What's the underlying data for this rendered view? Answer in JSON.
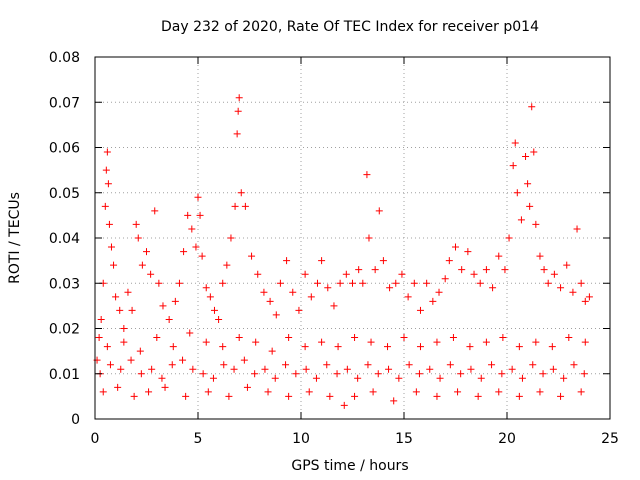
{
  "chart_data": {
    "type": "scatter",
    "title": "Day 232 of 2020, Rate Of TEC Index for receiver p014",
    "xlabel": "GPS time / hours",
    "ylabel": "ROTI / TECUs",
    "xlim": [
      0,
      25
    ],
    "ylim": [
      0,
      0.08
    ],
    "x_ticks": [
      0,
      5,
      10,
      15,
      20,
      25
    ],
    "y_ticks": [
      0,
      0.01,
      0.02,
      0.03,
      0.04,
      0.05,
      0.06,
      0.07,
      0.08
    ],
    "x_tick_labels": [
      "0",
      "5",
      "10",
      "15",
      "20",
      "25"
    ],
    "y_tick_labels": [
      "0",
      "0.01",
      "0.02",
      "0.03",
      "0.04",
      "0.05",
      "0.06",
      "0.07",
      "0.08"
    ],
    "grid": true,
    "marker": "plus",
    "series_color": "#ff0000",
    "series": [
      {
        "points": [
          [
            0.1,
            0.013
          ],
          [
            0.2,
            0.018
          ],
          [
            0.3,
            0.022
          ],
          [
            0.4,
            0.03
          ],
          [
            0.5,
            0.047
          ],
          [
            0.55,
            0.055
          ],
          [
            0.6,
            0.059
          ],
          [
            0.65,
            0.052
          ],
          [
            0.7,
            0.043
          ],
          [
            0.8,
            0.038
          ],
          [
            0.9,
            0.034
          ],
          [
            1.0,
            0.027
          ],
          [
            1.2,
            0.024
          ],
          [
            1.4,
            0.02
          ],
          [
            1.6,
            0.028
          ],
          [
            1.8,
            0.024
          ],
          [
            2.0,
            0.043
          ],
          [
            2.1,
            0.04
          ],
          [
            2.3,
            0.034
          ],
          [
            2.5,
            0.037
          ],
          [
            2.7,
            0.032
          ],
          [
            2.9,
            0.046
          ],
          [
            3.1,
            0.03
          ],
          [
            3.3,
            0.025
          ],
          [
            3.6,
            0.022
          ],
          [
            3.9,
            0.026
          ],
          [
            4.1,
            0.03
          ],
          [
            4.3,
            0.037
          ],
          [
            4.5,
            0.045
          ],
          [
            4.7,
            0.042
          ],
          [
            4.9,
            0.038
          ],
          [
            5.0,
            0.049
          ],
          [
            5.1,
            0.045
          ],
          [
            5.2,
            0.036
          ],
          [
            5.4,
            0.029
          ],
          [
            5.6,
            0.027
          ],
          [
            5.8,
            0.024
          ],
          [
            6.0,
            0.022
          ],
          [
            6.2,
            0.03
          ],
          [
            6.4,
            0.034
          ],
          [
            6.6,
            0.04
          ],
          [
            6.8,
            0.047
          ],
          [
            6.9,
            0.063
          ],
          [
            6.95,
            0.068
          ],
          [
            7.0,
            0.071
          ],
          [
            7.1,
            0.05
          ],
          [
            7.3,
            0.047
          ],
          [
            7.6,
            0.036
          ],
          [
            7.9,
            0.032
          ],
          [
            8.2,
            0.028
          ],
          [
            8.5,
            0.026
          ],
          [
            8.8,
            0.023
          ],
          [
            9.0,
            0.03
          ],
          [
            9.3,
            0.035
          ],
          [
            9.6,
            0.028
          ],
          [
            9.9,
            0.024
          ],
          [
            10.2,
            0.032
          ],
          [
            10.5,
            0.027
          ],
          [
            10.8,
            0.03
          ],
          [
            11.0,
            0.035
          ],
          [
            11.3,
            0.029
          ],
          [
            11.6,
            0.025
          ],
          [
            11.9,
            0.03
          ],
          [
            12.2,
            0.032
          ],
          [
            12.5,
            0.03
          ],
          [
            12.8,
            0.033
          ],
          [
            13.0,
            0.03
          ],
          [
            13.2,
            0.054
          ],
          [
            13.3,
            0.04
          ],
          [
            13.6,
            0.033
          ],
          [
            13.8,
            0.046
          ],
          [
            14.0,
            0.035
          ],
          [
            14.3,
            0.029
          ],
          [
            14.6,
            0.03
          ],
          [
            14.9,
            0.032
          ],
          [
            15.2,
            0.027
          ],
          [
            15.5,
            0.03
          ],
          [
            15.8,
            0.024
          ],
          [
            16.1,
            0.03
          ],
          [
            16.4,
            0.026
          ],
          [
            16.7,
            0.028
          ],
          [
            17.0,
            0.031
          ],
          [
            17.2,
            0.035
          ],
          [
            17.5,
            0.038
          ],
          [
            17.8,
            0.033
          ],
          [
            18.1,
            0.037
          ],
          [
            18.4,
            0.032
          ],
          [
            18.7,
            0.03
          ],
          [
            19.0,
            0.033
          ],
          [
            19.3,
            0.029
          ],
          [
            19.6,
            0.036
          ],
          [
            19.9,
            0.033
          ],
          [
            20.1,
            0.04
          ],
          [
            20.3,
            0.056
          ],
          [
            20.4,
            0.061
          ],
          [
            20.5,
            0.05
          ],
          [
            20.7,
            0.044
          ],
          [
            20.9,
            0.058
          ],
          [
            21.0,
            0.052
          ],
          [
            21.1,
            0.047
          ],
          [
            21.2,
            0.069
          ],
          [
            21.3,
            0.059
          ],
          [
            21.4,
            0.043
          ],
          [
            21.6,
            0.036
          ],
          [
            21.8,
            0.033
          ],
          [
            22.0,
            0.03
          ],
          [
            22.3,
            0.032
          ],
          [
            22.6,
            0.029
          ],
          [
            22.9,
            0.034
          ],
          [
            23.2,
            0.028
          ],
          [
            23.4,
            0.042
          ],
          [
            23.6,
            0.03
          ],
          [
            23.8,
            0.026
          ],
          [
            24.0,
            0.027
          ],
          [
            0.25,
            0.01
          ],
          [
            0.75,
            0.012
          ],
          [
            1.25,
            0.011
          ],
          [
            1.75,
            0.013
          ],
          [
            2.25,
            0.01
          ],
          [
            2.75,
            0.011
          ],
          [
            3.25,
            0.009
          ],
          [
            3.75,
            0.012
          ],
          [
            4.25,
            0.013
          ],
          [
            4.75,
            0.011
          ],
          [
            5.25,
            0.01
          ],
          [
            5.75,
            0.009
          ],
          [
            6.25,
            0.012
          ],
          [
            6.75,
            0.011
          ],
          [
            7.25,
            0.013
          ],
          [
            7.75,
            0.01
          ],
          [
            8.25,
            0.011
          ],
          [
            8.75,
            0.009
          ],
          [
            9.25,
            0.012
          ],
          [
            9.75,
            0.01
          ],
          [
            10.25,
            0.011
          ],
          [
            10.75,
            0.009
          ],
          [
            11.25,
            0.012
          ],
          [
            11.75,
            0.01
          ],
          [
            12.25,
            0.011
          ],
          [
            12.75,
            0.009
          ],
          [
            13.25,
            0.012
          ],
          [
            13.75,
            0.01
          ],
          [
            14.25,
            0.011
          ],
          [
            14.75,
            0.009
          ],
          [
            15.25,
            0.012
          ],
          [
            15.75,
            0.01
          ],
          [
            16.25,
            0.011
          ],
          [
            16.75,
            0.009
          ],
          [
            17.25,
            0.012
          ],
          [
            17.75,
            0.01
          ],
          [
            18.25,
            0.011
          ],
          [
            18.75,
            0.009
          ],
          [
            19.25,
            0.012
          ],
          [
            19.75,
            0.01
          ],
          [
            20.25,
            0.011
          ],
          [
            20.75,
            0.009
          ],
          [
            21.25,
            0.012
          ],
          [
            21.75,
            0.01
          ],
          [
            22.25,
            0.011
          ],
          [
            22.75,
            0.009
          ],
          [
            23.25,
            0.012
          ],
          [
            23.75,
            0.01
          ],
          [
            0.4,
            0.006
          ],
          [
            1.1,
            0.007
          ],
          [
            1.9,
            0.005
          ],
          [
            2.6,
            0.006
          ],
          [
            3.4,
            0.007
          ],
          [
            4.4,
            0.005
          ],
          [
            5.5,
            0.006
          ],
          [
            6.5,
            0.005
          ],
          [
            7.4,
            0.007
          ],
          [
            8.4,
            0.006
          ],
          [
            9.4,
            0.005
          ],
          [
            10.4,
            0.006
          ],
          [
            11.4,
            0.005
          ],
          [
            12.1,
            0.003
          ],
          [
            12.6,
            0.005
          ],
          [
            13.5,
            0.006
          ],
          [
            14.5,
            0.004
          ],
          [
            15.6,
            0.006
          ],
          [
            16.6,
            0.005
          ],
          [
            17.6,
            0.006
          ],
          [
            18.6,
            0.005
          ],
          [
            19.6,
            0.006
          ],
          [
            20.6,
            0.005
          ],
          [
            21.6,
            0.006
          ],
          [
            22.6,
            0.005
          ],
          [
            23.6,
            0.006
          ],
          [
            0.6,
            0.016
          ],
          [
            1.4,
            0.017
          ],
          [
            2.2,
            0.015
          ],
          [
            3.0,
            0.018
          ],
          [
            3.8,
            0.016
          ],
          [
            4.6,
            0.019
          ],
          [
            5.4,
            0.017
          ],
          [
            6.2,
            0.016
          ],
          [
            7.0,
            0.018
          ],
          [
            7.8,
            0.017
          ],
          [
            8.6,
            0.015
          ],
          [
            9.4,
            0.018
          ],
          [
            10.2,
            0.016
          ],
          [
            11.0,
            0.017
          ],
          [
            11.8,
            0.016
          ],
          [
            12.6,
            0.018
          ],
          [
            13.4,
            0.017
          ],
          [
            14.2,
            0.016
          ],
          [
            15.0,
            0.018
          ],
          [
            15.8,
            0.016
          ],
          [
            16.6,
            0.017
          ],
          [
            17.4,
            0.018
          ],
          [
            18.2,
            0.016
          ],
          [
            19.0,
            0.017
          ],
          [
            19.8,
            0.018
          ],
          [
            20.6,
            0.016
          ],
          [
            21.4,
            0.017
          ],
          [
            22.2,
            0.016
          ],
          [
            23.0,
            0.018
          ],
          [
            23.8,
            0.017
          ]
        ]
      }
    ]
  }
}
